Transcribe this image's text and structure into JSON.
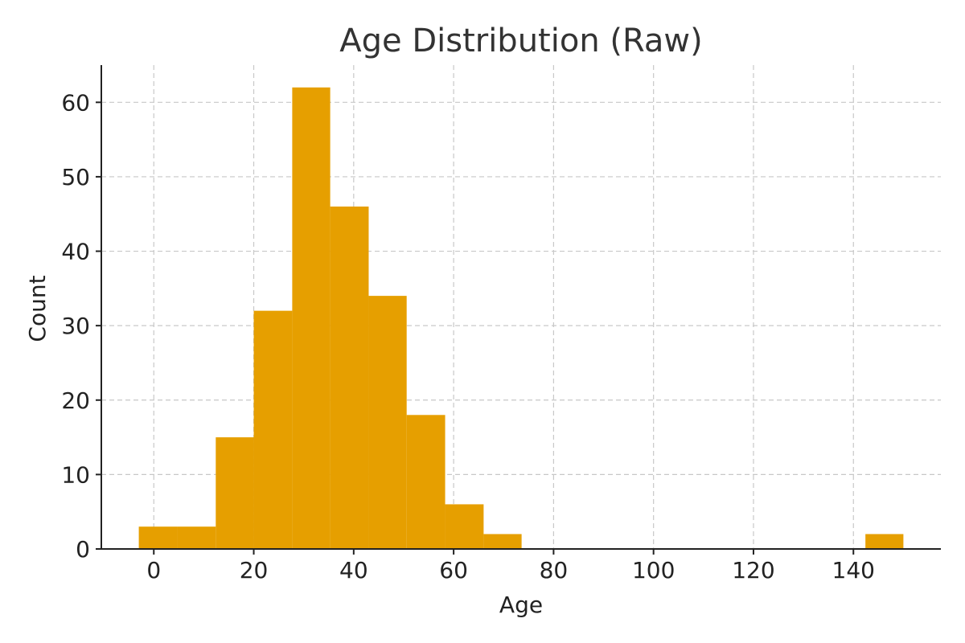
{
  "chart_data": {
    "type": "bar",
    "title": "Age Distribution (Raw)",
    "xlabel": "Age",
    "ylabel": "Count",
    "xlim": [
      -10.5,
      157.5
    ],
    "ylim": [
      0,
      65
    ],
    "xticks": [
      0,
      20,
      40,
      60,
      80,
      100,
      120,
      140
    ],
    "yticks": [
      0,
      10,
      20,
      30,
      40,
      50,
      60
    ],
    "grid": true,
    "bar_color": "#E69F00",
    "bins": [
      {
        "x0": -3.0,
        "x1": 4.7,
        "count": 3
      },
      {
        "x0": 4.7,
        "x1": 12.4,
        "count": 3
      },
      {
        "x0": 12.4,
        "x1": 20.0,
        "count": 15
      },
      {
        "x0": 20.0,
        "x1": 27.7,
        "count": 32
      },
      {
        "x0": 27.7,
        "x1": 35.3,
        "count": 62
      },
      {
        "x0": 35.3,
        "x1": 43.0,
        "count": 46
      },
      {
        "x0": 43.0,
        "x1": 50.6,
        "count": 34
      },
      {
        "x0": 50.6,
        "x1": 58.3,
        "count": 18
      },
      {
        "x0": 58.3,
        "x1": 66.0,
        "count": 6
      },
      {
        "x0": 66.0,
        "x1": 73.6,
        "count": 2
      },
      {
        "x0": 142.4,
        "x1": 150.0,
        "count": 2
      }
    ]
  }
}
